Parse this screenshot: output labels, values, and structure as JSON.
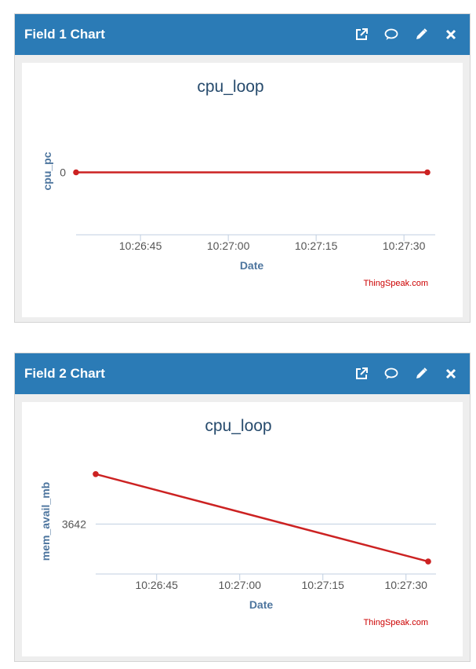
{
  "panels": [
    {
      "header_title": "Field 1 Chart",
      "icons": [
        "external-link-icon",
        "comment-icon",
        "pencil-icon",
        "close-icon"
      ],
      "credit": "ThingSpeak.com"
    },
    {
      "header_title": "Field 2 Chart",
      "icons": [
        "external-link-icon",
        "comment-icon",
        "pencil-icon",
        "close-icon"
      ],
      "credit": "ThingSpeak.com"
    }
  ],
  "colors": {
    "header": "#2b7bb6",
    "series": "#cc2222",
    "grid": "#c0cfe0"
  },
  "chart_data": [
    {
      "type": "line",
      "title": "cpu_loop",
      "xlabel": "Date",
      "ylabel": "cpu_pc",
      "x_ticks": [
        "10:26:45",
        "10:27:00",
        "10:27:15",
        "10:27:30"
      ],
      "y_ticks": [
        {
          "value": 0,
          "label": "0"
        }
      ],
      "series": [
        {
          "points": [
            [
              "10:26:34",
              0
            ],
            [
              "10:27:34",
              0
            ]
          ]
        }
      ],
      "ylim": [
        -1,
        1
      ]
    },
    {
      "type": "line",
      "title": "cpu_loop",
      "xlabel": "Date",
      "ylabel": "mem_avail_mb",
      "x_ticks": [
        "10:26:45",
        "10:27:00",
        "10:27:15",
        "10:27:30"
      ],
      "y_ticks": [
        {
          "value": 3642,
          "label": "3642"
        }
      ],
      "series": [
        {
          "points": [
            [
              "10:26:34",
              3643
            ],
            [
              "10:27:34",
              3641.25
            ]
          ]
        }
      ],
      "ylim": [
        3641,
        3643.5
      ]
    }
  ]
}
